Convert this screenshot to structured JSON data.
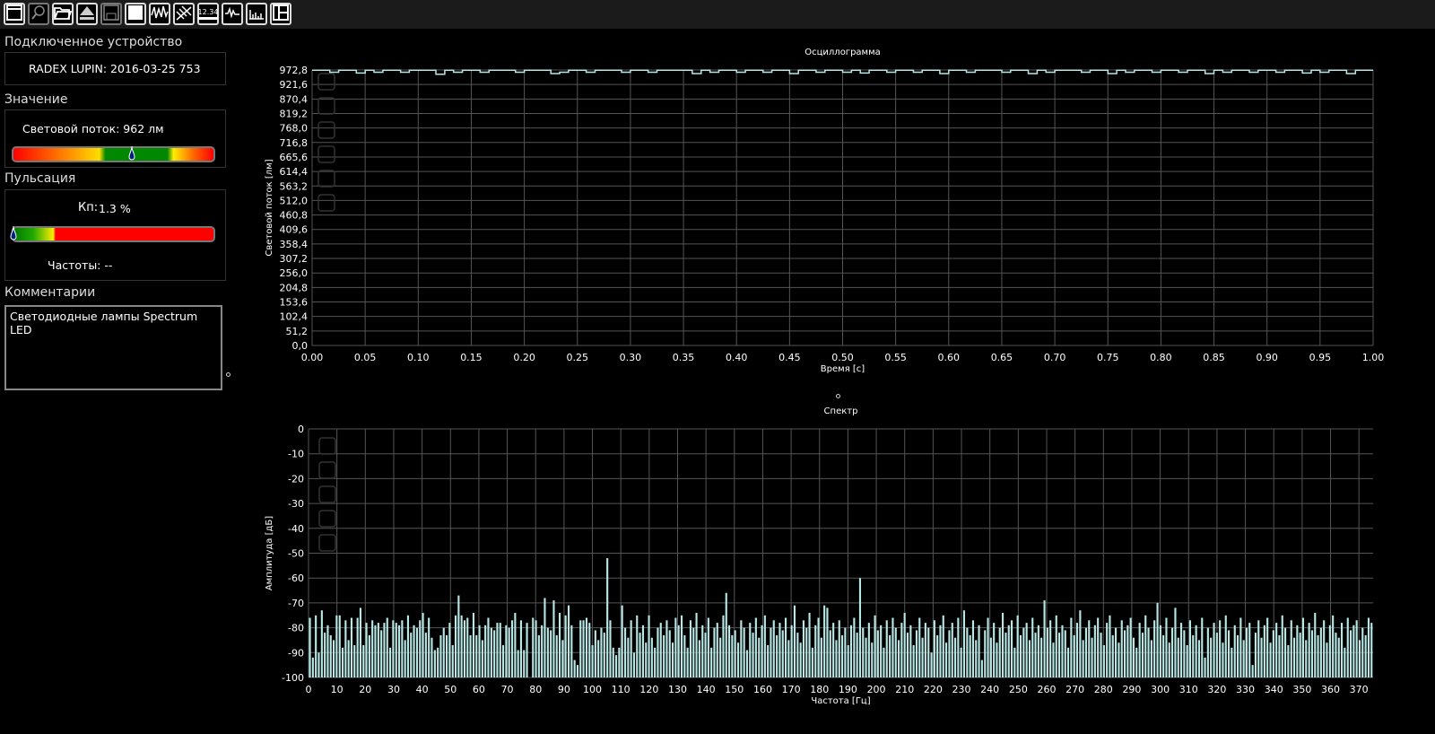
{
  "toolbar": {
    "items": [
      {
        "icon": "window-icon",
        "enabled": true
      },
      {
        "icon": "zoom-icon",
        "enabled": false
      },
      {
        "icon": "open-folder-icon",
        "enabled": true
      },
      {
        "icon": "eject-icon",
        "enabled": true
      },
      {
        "icon": "save-icon",
        "enabled": false
      },
      {
        "icon": "stop-icon",
        "enabled": true
      },
      {
        "icon": "waveform-icon",
        "enabled": true
      },
      {
        "icon": "calibration-icon",
        "enabled": true
      },
      {
        "icon": "display-value-icon",
        "label": "12.34",
        "enabled": true
      },
      {
        "icon": "oscillogram-icon",
        "enabled": true
      },
      {
        "icon": "spectrum-icon",
        "enabled": true
      },
      {
        "icon": "layout-icon",
        "enabled": true
      }
    ]
  },
  "device": {
    "heading": "Подключенное устройство",
    "name": "RADEX LUPIN: 2016-03-25 753"
  },
  "value": {
    "heading": "Значение",
    "text": "Световой поток: 962 лм",
    "gauge_position": 0.59
  },
  "pulsation": {
    "heading": "Пульсация",
    "label": "Кп:",
    "value": "1.3 %",
    "gauge_position": 0.0,
    "freq_text": "Частоты: --"
  },
  "comments": {
    "heading": "Комментарии",
    "text": "Светодиодные лампы Spectrum LED"
  },
  "colors": {
    "trace": "#b8e8e6",
    "grid": "#555555",
    "background": "#000000"
  },
  "chart_data": [
    {
      "type": "line",
      "title": "Осциллограмма",
      "xlabel": "Время [с]",
      "ylabel": "Световой поток [лм]",
      "xlim": [
        0,
        1
      ],
      "ylim": [
        0,
        972.8
      ],
      "grid": true,
      "xticks": [
        "0.00",
        "0.05",
        "0.10",
        "0.15",
        "0.20",
        "0.25",
        "0.30",
        "0.35",
        "0.40",
        "0.45",
        "0.50",
        "0.55",
        "0.60",
        "0.65",
        "0.70",
        "0.75",
        "0.80",
        "0.85",
        "0.90",
        "0.95",
        "1.00"
      ],
      "yticks": [
        "0,0",
        "51,2",
        "102,4",
        "153,6",
        "204,8",
        "256,0",
        "307,2",
        "358,4",
        "409,6",
        "460,8",
        "512,0",
        "563,2",
        "614,4",
        "665,6",
        "716,8",
        "768,0",
        "819,2",
        "870,4",
        "921,6",
        "972,8"
      ],
      "y": [
        972,
        972,
        965,
        972,
        972,
        962,
        972,
        965,
        972,
        972,
        965,
        972,
        972,
        972,
        958,
        972,
        965,
        972,
        972,
        965,
        972,
        972,
        972,
        965,
        972,
        972,
        972,
        960,
        965,
        972,
        972,
        965,
        972,
        972,
        972,
        965,
        972,
        972,
        965,
        972,
        972,
        972,
        972,
        960,
        972,
        965,
        972,
        972,
        965,
        972,
        972,
        965,
        972,
        972,
        960,
        972,
        972,
        965,
        972,
        972,
        965,
        972,
        962,
        972,
        972,
        965,
        972,
        972,
        965,
        972,
        972,
        960,
        972,
        972,
        965,
        972,
        972,
        972,
        965,
        972,
        972,
        960,
        972,
        965,
        972,
        972,
        972,
        965,
        972,
        972,
        960,
        972,
        965,
        972,
        972,
        965,
        972,
        972,
        965,
        972,
        972,
        960,
        972,
        965,
        972,
        972,
        965,
        972,
        972,
        965,
        972,
        972,
        962,
        972,
        965,
        972,
        972,
        960,
        972,
        972
      ]
    },
    {
      "type": "bar",
      "title": "Спектр",
      "xlabel": "Частота [Гц]",
      "ylabel": "Амплитуда [дБ]",
      "xlim": [
        0,
        375
      ],
      "ylim": [
        -100,
        0
      ],
      "grid": true,
      "xticks": [
        "0",
        "10",
        "20",
        "30",
        "40",
        "50",
        "60",
        "70",
        "80",
        "90",
        "100",
        "110",
        "120",
        "130",
        "140",
        "150",
        "160",
        "170",
        "180",
        "190",
        "200",
        "210",
        "220",
        "230",
        "240",
        "250",
        "260",
        "270",
        "280",
        "290",
        "300",
        "310",
        "320",
        "330",
        "340",
        "350",
        "360",
        "370"
      ],
      "yticks": [
        "-100",
        "-90",
        "-80",
        "-70",
        "-60",
        "-50",
        "-40",
        "-30",
        "-20",
        "-10",
        "0"
      ],
      "values": [
        -76,
        -92,
        -75,
        -90,
        -73,
        -82,
        -79,
        -83,
        -85,
        -75,
        -75,
        -88,
        -77,
        -85,
        -76,
        -87,
        -76,
        -72,
        -87,
        -78,
        -83,
        -77,
        -79,
        -78,
        -81,
        -78,
        -76,
        -88,
        -77,
        -78,
        -79,
        -77,
        -85,
        -75,
        -82,
        -79,
        -80,
        -77,
        -74,
        -82,
        -76,
        -84,
        -89,
        -88,
        -83,
        -80,
        -83,
        -78,
        -87,
        -75,
        -67,
        -75,
        -77,
        -76,
        -83,
        -74,
        -83,
        -79,
        -85,
        -79,
        -76,
        -80,
        -81,
        -78,
        -78,
        -87,
        -79,
        -80,
        -77,
        -74,
        -89,
        -77,
        -89,
        -78,
        -100,
        -76,
        -77,
        -83,
        -79,
        -68,
        -80,
        -81,
        -69,
        -83,
        -74,
        -85,
        -75,
        -71,
        -79,
        -93,
        -95,
        -77,
        -77,
        -76,
        -78,
        -87,
        -81,
        -85,
        -80,
        -82,
        -52,
        -77,
        -88,
        -91,
        -88,
        -71,
        -80,
        -84,
        -77,
        -90,
        -75,
        -82,
        -79,
        -86,
        -75,
        -84,
        -88,
        -80,
        -78,
        -83,
        -77,
        -81,
        -86,
        -76,
        -79,
        -75,
        -83,
        -88,
        -77,
        -80,
        -74,
        -85,
        -79,
        -82,
        -76,
        -88,
        -80,
        -78,
        -84,
        -75,
        -66,
        -79,
        -83,
        -81,
        -86,
        -77,
        -80,
        -89,
        -78,
        -82,
        -76,
        -84,
        -79,
        -75,
        -87,
        -80,
        -77,
        -83,
        -78,
        -81,
        -76,
        -85,
        -79,
        -71,
        -82,
        -86,
        -77,
        -80,
        -74,
        -88,
        -79,
        -76,
        -84,
        -71,
        -72,
        -81,
        -78,
        -85,
        -77,
        -83,
        -80,
        -87,
        -79,
        -76,
        -82,
        -60,
        -80,
        -84,
        -78,
        -86,
        -75,
        -81,
        -79,
        -88,
        -77,
        -83,
        -76,
        -80,
        -85,
        -78,
        -74,
        -82,
        -79,
        -87,
        -81,
        -76,
        -84,
        -78,
        -80,
        -90,
        -77,
        -83,
        -79,
        -75,
        -86,
        -81,
        -78,
        -84,
        -76,
        -88,
        -73,
        -80,
        -83,
        -77,
        -85,
        -79,
        -93,
        -81,
        -76,
        -84,
        -78,
        -86,
        -80,
        -74,
        -82,
        -79,
        -77,
        -88,
        -75,
        -83,
        -80,
        -78,
        -85,
        -76,
        -82,
        -79,
        -84,
        -69,
        -80,
        -77,
        -86,
        -75,
        -82,
        -79,
        -81,
        -88,
        -76,
        -83,
        -78,
        -73,
        -85,
        -80,
        -77,
        -84,
        -79,
        -76,
        -82,
        -87,
        -78,
        -75,
        -83,
        -80,
        -86,
        -77,
        -81,
        -79,
        -76,
        -84,
        -88,
        -78,
        -82,
        -75,
        -80,
        -85,
        -77,
        -70,
        -79,
        -83,
        -76,
        -86,
        -80,
        -72,
        -84,
        -78,
        -81,
        -87,
        -77,
        -83,
        -79,
        -85,
        -76,
        -92,
        -80,
        -84,
        -78,
        -82,
        -77,
        -86,
        -75,
        -81,
        -88,
        -79,
        -83,
        -76,
        -85,
        -80,
        -78,
        -95,
        -82,
        -77,
        -84,
        -79,
        -76,
        -86,
        -81,
        -78,
        -83,
        -75,
        -80,
        -87,
        -77,
        -84,
        -79,
        -82,
        -76,
        -85,
        -78,
        -81,
        -74,
        -83,
        -80,
        -77,
        -86,
        -79,
        -75,
        -82,
        -84,
        -78,
        -88,
        -76,
        -81,
        -79,
        -77,
        -85,
        -80,
        -83,
        -76,
        -78
      ]
    }
  ]
}
